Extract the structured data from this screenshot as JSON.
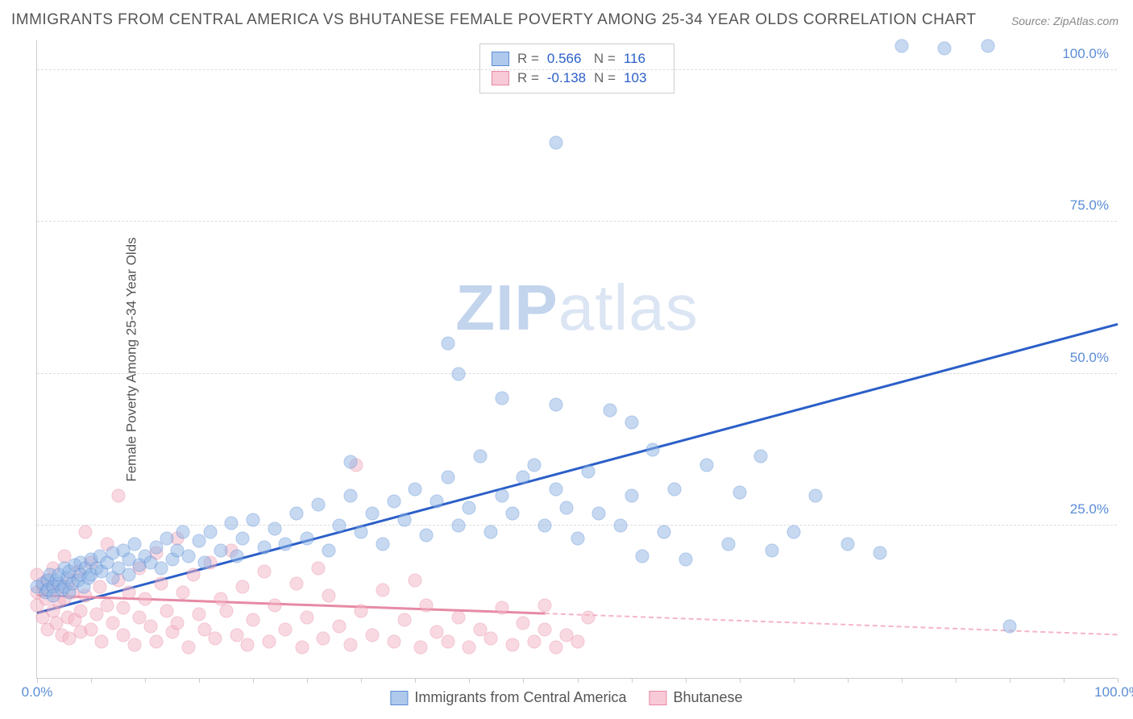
{
  "title": "IMMIGRANTS FROM CENTRAL AMERICA VS BHUTANESE FEMALE POVERTY AMONG 25-34 YEAR OLDS CORRELATION CHART",
  "source": "Source: ZipAtlas.com",
  "ylabel": "Female Poverty Among 25-34 Year Olds",
  "watermark_bold": "ZIP",
  "watermark_rest": "atlas",
  "chart": {
    "type": "scatter",
    "xlim": [
      0,
      100
    ],
    "ylim": [
      0,
      105
    ],
    "x_ticks_minor": [
      0,
      5,
      10,
      15,
      20,
      25,
      30,
      35,
      40,
      45,
      50,
      55,
      60,
      65,
      70,
      75,
      80,
      85,
      90,
      95,
      100
    ],
    "x_tick_labels": [
      {
        "pos": 0,
        "label": "0.0%"
      },
      {
        "pos": 100,
        "label": "100.0%"
      }
    ],
    "y_gridlines": [
      25,
      50,
      75,
      100
    ],
    "y_tick_labels": [
      {
        "pos": 25,
        "label": "25.0%"
      },
      {
        "pos": 50,
        "label": "50.0%"
      },
      {
        "pos": 75,
        "label": "75.0%"
      },
      {
        "pos": 100,
        "label": "100.0%"
      }
    ],
    "background_color": "#ffffff",
    "grid_color": "#dddddd",
    "axis_color": "#cccccc"
  },
  "series": [
    {
      "name": "Immigrants from Central America",
      "key": "blue",
      "color_fill": "#8fb5e5",
      "color_stroke": "#5b8dd6",
      "R": "0.566",
      "N": "116",
      "trend": {
        "x1": 0,
        "y1": 10.5,
        "x2": 100,
        "y2": 58,
        "color": "#2b5fc8"
      },
      "points": [
        [
          0,
          15
        ],
        [
          0.5,
          15.5
        ],
        [
          0.8,
          14
        ],
        [
          1,
          16
        ],
        [
          1,
          14.5
        ],
        [
          1.2,
          17
        ],
        [
          1.5,
          15
        ],
        [
          1.5,
          13.5
        ],
        [
          1.8,
          16
        ],
        [
          2,
          15.5
        ],
        [
          2,
          17
        ],
        [
          2.3,
          14.5
        ],
        [
          2.5,
          18
        ],
        [
          2.5,
          15
        ],
        [
          2.8,
          16.5
        ],
        [
          3,
          14
        ],
        [
          3,
          17.5
        ],
        [
          3.3,
          15.5
        ],
        [
          3.5,
          18.5
        ],
        [
          3.8,
          16
        ],
        [
          4,
          17
        ],
        [
          4,
          19
        ],
        [
          4.3,
          15
        ],
        [
          4.5,
          18
        ],
        [
          4.8,
          16.5
        ],
        [
          5,
          19.5
        ],
        [
          5,
          17
        ],
        [
          5.5,
          18
        ],
        [
          5.8,
          20
        ],
        [
          6,
          17.5
        ],
        [
          6.5,
          19
        ],
        [
          7,
          16.5
        ],
        [
          7,
          20.5
        ],
        [
          7.5,
          18
        ],
        [
          8,
          21
        ],
        [
          8.5,
          17
        ],
        [
          8.5,
          19.5
        ],
        [
          9,
          22
        ],
        [
          9.5,
          18.5
        ],
        [
          10,
          20
        ],
        [
          10.5,
          19
        ],
        [
          11,
          21.5
        ],
        [
          11.5,
          18
        ],
        [
          12,
          23
        ],
        [
          12.5,
          19.5
        ],
        [
          13,
          21
        ],
        [
          13.5,
          24
        ],
        [
          14,
          20
        ],
        [
          15,
          22.5
        ],
        [
          15.5,
          19
        ],
        [
          16,
          24
        ],
        [
          17,
          21
        ],
        [
          18,
          25.5
        ],
        [
          18.5,
          20
        ],
        [
          19,
          23
        ],
        [
          20,
          26
        ],
        [
          21,
          21.5
        ],
        [
          22,
          24.5
        ],
        [
          23,
          22
        ],
        [
          24,
          27
        ],
        [
          25,
          23
        ],
        [
          26,
          28.5
        ],
        [
          27,
          21
        ],
        [
          28,
          25
        ],
        [
          29,
          30
        ],
        [
          29,
          35.5
        ],
        [
          30,
          24
        ],
        [
          31,
          27
        ],
        [
          32,
          22
        ],
        [
          33,
          29
        ],
        [
          34,
          26
        ],
        [
          35,
          31
        ],
        [
          36,
          23.5
        ],
        [
          37,
          29
        ],
        [
          38,
          55
        ],
        [
          38,
          33
        ],
        [
          39,
          25
        ],
        [
          39,
          50
        ],
        [
          40,
          28
        ],
        [
          41,
          36.5
        ],
        [
          42,
          24
        ],
        [
          43,
          30
        ],
        [
          43,
          46
        ],
        [
          44,
          27
        ],
        [
          45,
          33
        ],
        [
          46,
          35
        ],
        [
          47,
          25
        ],
        [
          48,
          31
        ],
        [
          48,
          45
        ],
        [
          48,
          88
        ],
        [
          49,
          28
        ],
        [
          50,
          23
        ],
        [
          51,
          34
        ],
        [
          52,
          27
        ],
        [
          53,
          44
        ],
        [
          54,
          25
        ],
        [
          55,
          30
        ],
        [
          55,
          42
        ],
        [
          56,
          20
        ],
        [
          57,
          37.5
        ],
        [
          58,
          24
        ],
        [
          59,
          31
        ],
        [
          60,
          19.5
        ],
        [
          62,
          35
        ],
        [
          64,
          22
        ],
        [
          65,
          30.5
        ],
        [
          67,
          36.5
        ],
        [
          68,
          21
        ],
        [
          70,
          24
        ],
        [
          72,
          30
        ],
        [
          75,
          22
        ],
        [
          78,
          20.5
        ],
        [
          80,
          104
        ],
        [
          84,
          103.5
        ],
        [
          88,
          104
        ],
        [
          90,
          8.5
        ]
      ]
    },
    {
      "name": "Bhutanese",
      "key": "pink",
      "color_fill": "#f5b5c5",
      "color_stroke": "#e68aa5",
      "R": "-0.138",
      "N": "103",
      "trend_solid": {
        "x1": 0,
        "y1": 13.5,
        "x2": 47,
        "y2": 10.5,
        "color": "#e68aa5"
      },
      "trend_dashed": {
        "x1": 47,
        "y1": 10.5,
        "x2": 100,
        "y2": 7,
        "color": "#f5b5c5"
      },
      "points": [
        [
          0,
          14
        ],
        [
          0,
          12
        ],
        [
          0,
          17
        ],
        [
          0.5,
          15
        ],
        [
          0.5,
          10
        ],
        [
          0.8,
          13
        ],
        [
          1,
          16
        ],
        [
          1,
          8
        ],
        [
          1.2,
          14.5
        ],
        [
          1.5,
          11
        ],
        [
          1.5,
          18
        ],
        [
          1.8,
          9
        ],
        [
          2,
          15
        ],
        [
          2,
          12.5
        ],
        [
          2.3,
          7
        ],
        [
          2.5,
          13
        ],
        [
          2.5,
          20
        ],
        [
          2.8,
          10
        ],
        [
          3,
          16
        ],
        [
          3,
          6.5
        ],
        [
          3.3,
          14
        ],
        [
          3.5,
          9.5
        ],
        [
          3.8,
          17.5
        ],
        [
          4,
          11
        ],
        [
          4,
          7.5
        ],
        [
          4.5,
          24
        ],
        [
          4.5,
          13.5
        ],
        [
          5,
          8
        ],
        [
          5,
          19
        ],
        [
          5.5,
          10.5
        ],
        [
          5.8,
          15
        ],
        [
          6,
          6
        ],
        [
          6.5,
          22
        ],
        [
          6.5,
          12
        ],
        [
          7,
          9
        ],
        [
          7.5,
          30
        ],
        [
          7.5,
          16
        ],
        [
          8,
          11.5
        ],
        [
          8,
          7
        ],
        [
          8.5,
          14
        ],
        [
          9,
          5.5
        ],
        [
          9.5,
          18
        ],
        [
          9.5,
          10
        ],
        [
          10,
          13
        ],
        [
          10.5,
          8.5
        ],
        [
          11,
          20.5
        ],
        [
          11,
          6
        ],
        [
          11.5,
          15.5
        ],
        [
          12,
          11
        ],
        [
          12.5,
          7.5
        ],
        [
          13,
          23
        ],
        [
          13,
          9
        ],
        [
          13.5,
          14
        ],
        [
          14,
          5
        ],
        [
          14.5,
          17
        ],
        [
          15,
          10.5
        ],
        [
          15.5,
          8
        ],
        [
          16,
          19
        ],
        [
          16.5,
          6.5
        ],
        [
          17,
          13
        ],
        [
          17.5,
          11
        ],
        [
          18,
          21
        ],
        [
          18.5,
          7
        ],
        [
          19,
          15
        ],
        [
          19.5,
          5.5
        ],
        [
          20,
          9.5
        ],
        [
          21,
          17.5
        ],
        [
          21.5,
          6
        ],
        [
          22,
          12
        ],
        [
          23,
          8
        ],
        [
          24,
          15.5
        ],
        [
          24.5,
          5
        ],
        [
          25,
          10
        ],
        [
          26,
          18
        ],
        [
          26.5,
          6.5
        ],
        [
          27,
          13.5
        ],
        [
          28,
          8.5
        ],
        [
          29,
          5.5
        ],
        [
          29.5,
          35
        ],
        [
          30,
          11
        ],
        [
          31,
          7
        ],
        [
          32,
          14.5
        ],
        [
          33,
          6
        ],
        [
          34,
          9.5
        ],
        [
          35,
          16
        ],
        [
          35.5,
          5
        ],
        [
          36,
          12
        ],
        [
          37,
          7.5
        ],
        [
          38,
          6
        ],
        [
          39,
          10
        ],
        [
          40,
          5
        ],
        [
          41,
          8
        ],
        [
          42,
          6.5
        ],
        [
          43,
          11.5
        ],
        [
          44,
          5.5
        ],
        [
          45,
          9
        ],
        [
          46,
          6
        ],
        [
          47,
          12
        ],
        [
          47,
          8
        ],
        [
          48,
          5
        ],
        [
          49,
          7
        ],
        [
          50,
          6
        ],
        [
          51,
          10
        ]
      ]
    }
  ],
  "legend_bottom": [
    {
      "swatch": "blue",
      "label": "Immigrants from Central America"
    },
    {
      "swatch": "pink",
      "label": "Bhutanese"
    }
  ]
}
